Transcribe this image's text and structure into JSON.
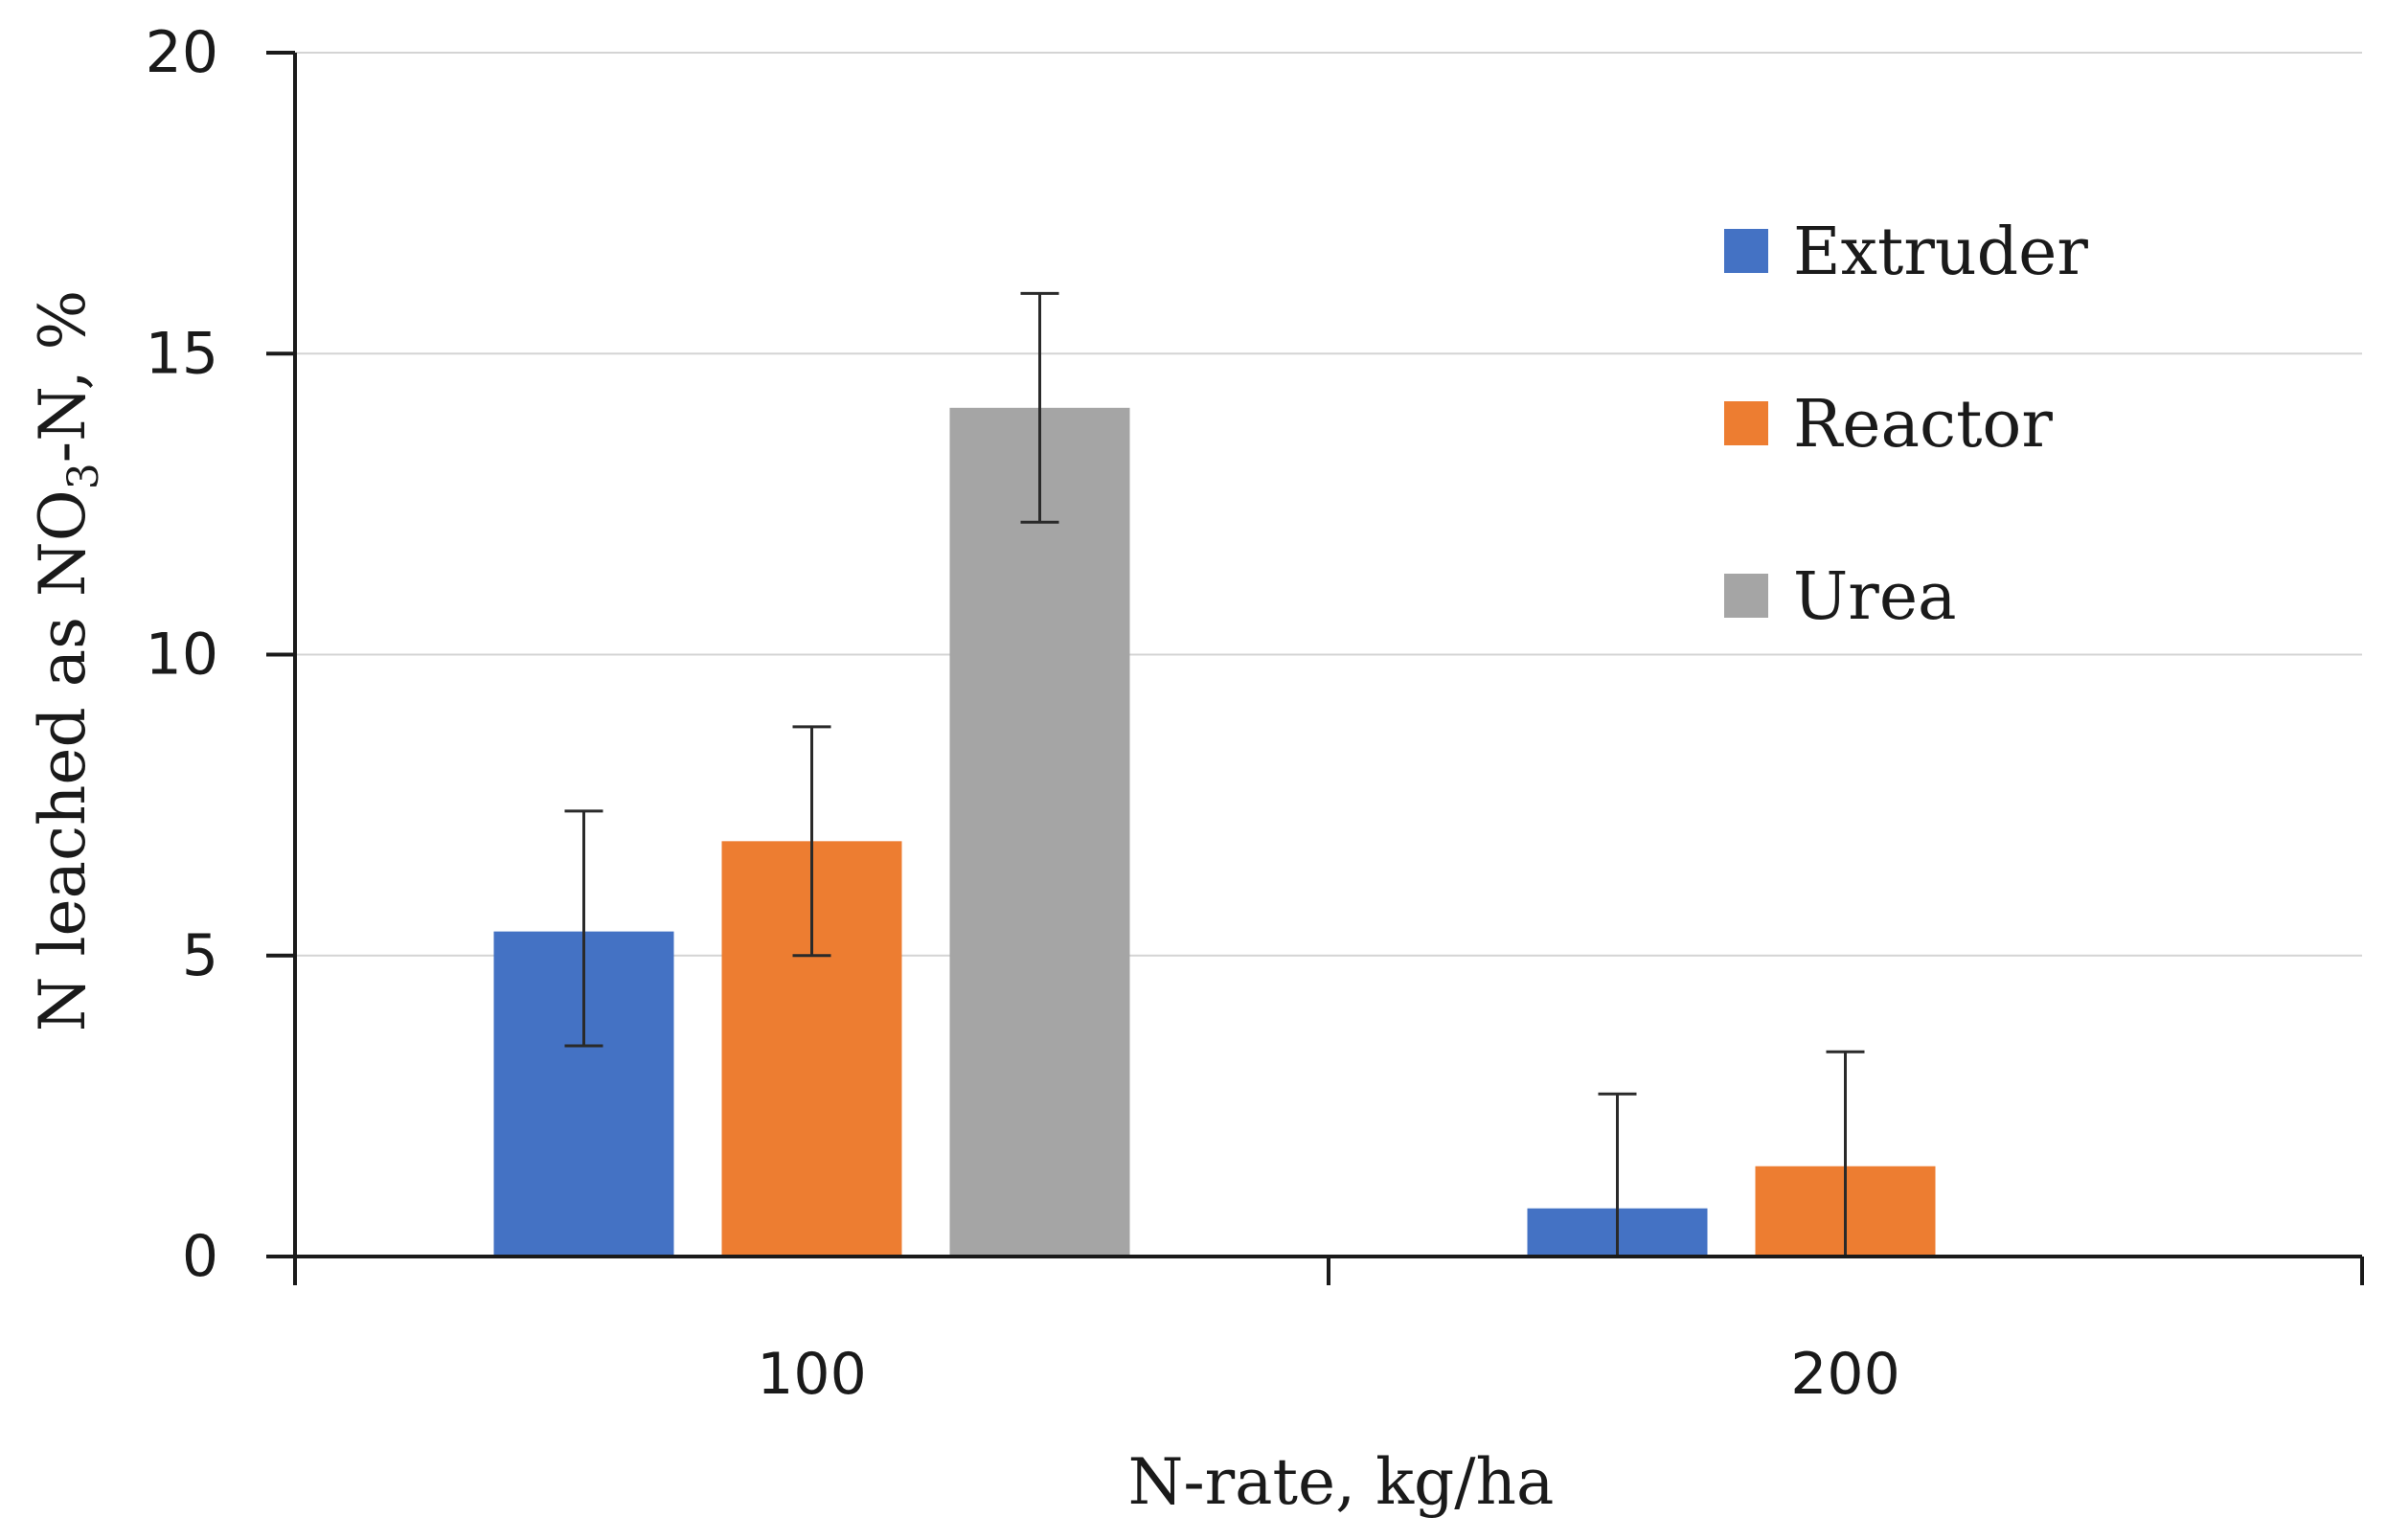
{
  "chart_data": {
    "type": "bar",
    "title": "",
    "xlabel": "N-rate, kg/ha",
    "ylabel": {
      "prefix": "N leached as NO",
      "subscript": "3",
      "suffix": "-N, %"
    },
    "ylim": [
      0,
      20
    ],
    "yticks": [
      "0",
      "5",
      "10",
      "15",
      "20"
    ],
    "grid": true,
    "legend_position": "top-right",
    "categories": [
      "100",
      "200"
    ],
    "series": [
      {
        "name": "Extruder",
        "color": "#4472C4",
        "values": [
          5.4,
          0.8
        ],
        "error_low": [
          3.5,
          0.0
        ],
        "error_high": [
          7.4,
          2.7
        ]
      },
      {
        "name": "Reactor",
        "color": "#ED7D31",
        "values": [
          6.9,
          1.5
        ],
        "error_low": [
          5.0,
          0.0
        ],
        "error_high": [
          8.8,
          3.4
        ]
      },
      {
        "name": "Urea",
        "color": "#A5A5A5",
        "values": [
          14.1,
          null
        ],
        "error_low": [
          12.2,
          null
        ],
        "error_high": [
          16.0,
          null
        ]
      }
    ]
  }
}
